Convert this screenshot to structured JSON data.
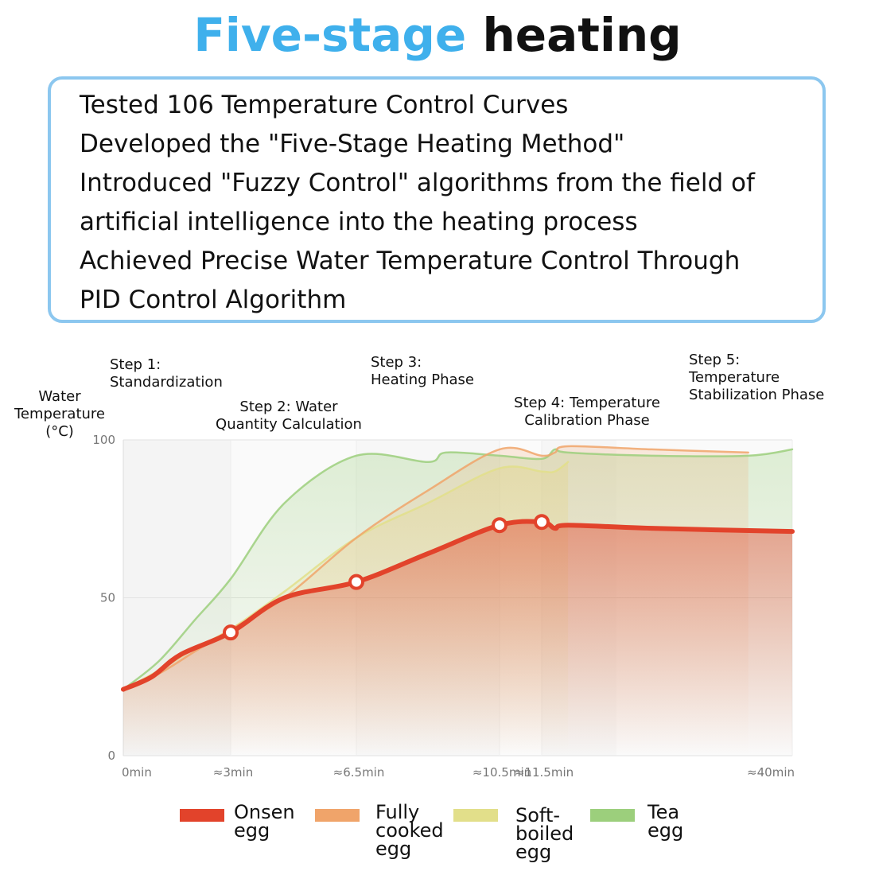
{
  "header": {
    "title_highlight": "Five-stage",
    "title_rest": "heating"
  },
  "info": {
    "lines": [
      "Tested 106 Temperature Control Curves",
      "Developed the \"Five-Stage Heating Method\"",
      "Introduced \"Fuzzy Control\" algorithms from the field of",
      "artificial intelligence into the heating process",
      "Achieved Precise Water Temperature Control Through",
      "PID Control Algorithm"
    ]
  },
  "steps": [
    "Step 1:\nStandardization",
    "Step 2: Water\nQuantity Calculation",
    "Step 3:\nHeating Phase",
    "Step 4: Temperature\nCalibration Phase",
    "Step 5:\nTemperature\nStabilization Phase"
  ],
  "chart_data": {
    "type": "line",
    "ylabel": "Water\nTemperature\n(°C)",
    "xlabel": "",
    "ylim": [
      0,
      100
    ],
    "yticks": [
      0,
      50,
      100
    ],
    "xcategories": [
      "0min",
      "≈3min",
      "≈6.5min",
      "≈10.5min",
      "≈11.5min",
      "≈40min"
    ],
    "legend_position": "bottom",
    "series": [
      {
        "name": "Onsen\negg",
        "color": "#e2432b",
        "points": [
          [
            0,
            21
          ],
          [
            0.8,
            25
          ],
          [
            1.6,
            32
          ],
          [
            3,
            39
          ],
          [
            4.5,
            50
          ],
          [
            6.5,
            55
          ],
          [
            8.5,
            64
          ],
          [
            10.5,
            73
          ],
          [
            11.5,
            74
          ],
          [
            13,
            72
          ],
          [
            14.5,
            73
          ],
          [
            24,
            72
          ],
          [
            40,
            71
          ]
        ],
        "markers": [
          3,
          6.5,
          10.5,
          11.5
        ]
      },
      {
        "name": "Fully\ncooked\negg",
        "color": "#f0a46a",
        "points": [
          [
            0,
            21
          ],
          [
            1,
            26
          ],
          [
            2,
            33
          ],
          [
            3,
            40
          ],
          [
            4.5,
            50
          ],
          [
            6.5,
            69
          ],
          [
            8.5,
            84
          ],
          [
            10.5,
            97
          ],
          [
            11.5,
            95
          ],
          [
            13,
            96
          ],
          [
            14.5,
            98
          ],
          [
            24,
            97
          ],
          [
            35,
            96
          ]
        ]
      },
      {
        "name": "Soft-\nboiled\negg",
        "color": "#e2df8a",
        "points": [
          [
            0,
            21
          ],
          [
            1,
            27
          ],
          [
            2,
            34
          ],
          [
            3,
            40
          ],
          [
            4.5,
            52
          ],
          [
            6.5,
            69
          ],
          [
            8.5,
            80
          ],
          [
            10.5,
            91
          ],
          [
            11.5,
            90
          ],
          [
            13,
            90
          ],
          [
            14.5,
            93
          ]
        ]
      },
      {
        "name": "Tea egg",
        "color": "#9ccf7c",
        "points": [
          [
            0,
            21
          ],
          [
            1,
            30
          ],
          [
            2,
            43
          ],
          [
            3,
            56
          ],
          [
            4.5,
            80
          ],
          [
            6.5,
            95
          ],
          [
            8.5,
            93
          ],
          [
            9,
            96
          ],
          [
            10.5,
            95
          ],
          [
            11.5,
            94
          ],
          [
            13,
            97
          ],
          [
            14.5,
            96
          ],
          [
            24,
            95
          ],
          [
            35,
            95
          ],
          [
            40,
            97
          ]
        ]
      }
    ]
  }
}
